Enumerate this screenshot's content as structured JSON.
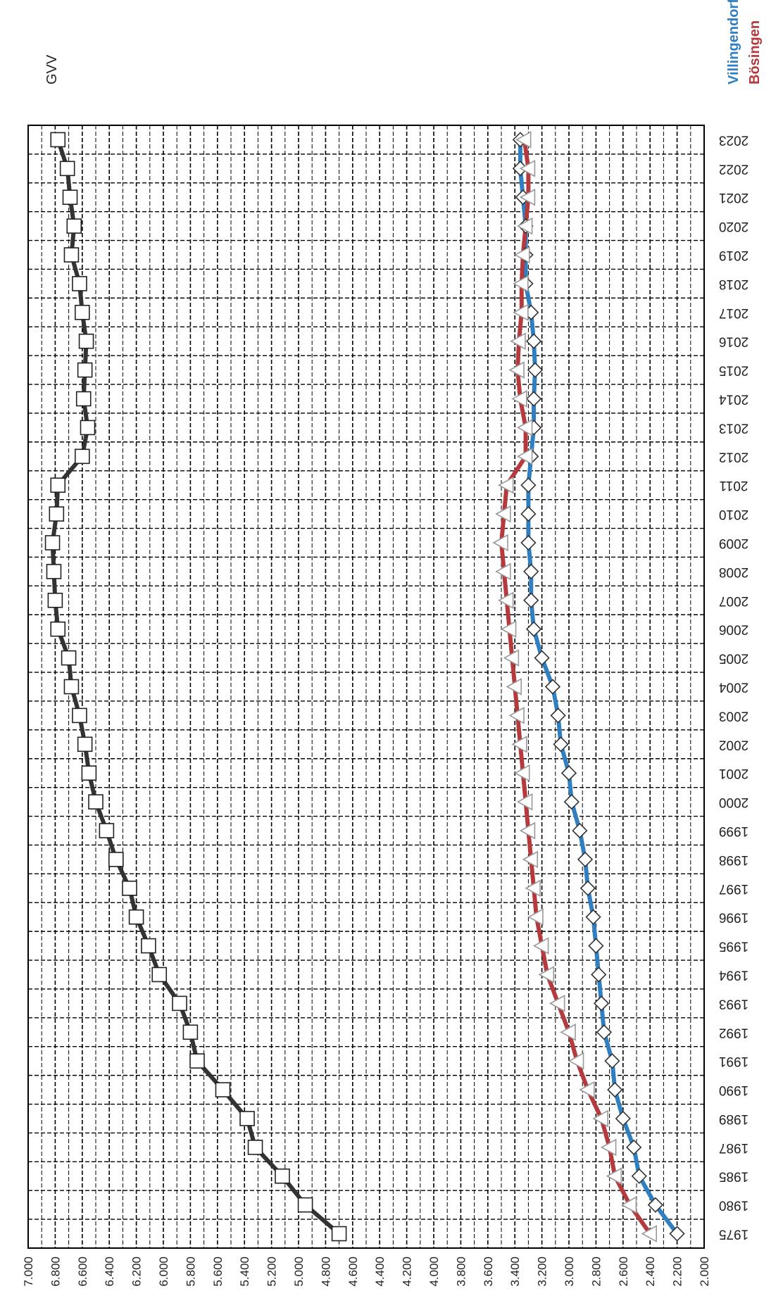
{
  "chart_data": {
    "type": "line",
    "orientation": "rotated-90",
    "title": "",
    "xlabel": "",
    "ylabel": "",
    "ylim": [
      2000,
      7000
    ],
    "y_tick_labels": [
      "2.000",
      "2.200",
      "2.400",
      "2.600",
      "2.800",
      "3.000",
      "3.200",
      "3.400",
      "3.600",
      "3.800",
      "4.000",
      "4.200",
      "4.400",
      "4.600",
      "4.800",
      "5.000",
      "5.200",
      "5.400",
      "5.600",
      "5.800",
      "6.000",
      "6.200",
      "6.400",
      "6.600",
      "6.800",
      "7.000"
    ],
    "categories": [
      "1975",
      "1980",
      "1985",
      "1987",
      "1989",
      "1990",
      "1991",
      "1992",
      "1993",
      "1994",
      "1995",
      "1996",
      "1997",
      "1998",
      "1999",
      "2000",
      "2001",
      "2002",
      "2003",
      "2004",
      "2005",
      "2006",
      "2007",
      "2008",
      "2009",
      "2010",
      "2011",
      "2012",
      "2013",
      "2014",
      "2015",
      "2016",
      "2017",
      "2018",
      "2019",
      "2020",
      "2021",
      "2022",
      "2023"
    ],
    "grid": true,
    "series": [
      {
        "name": "GVV",
        "marker": "square",
        "color": "#333333",
        "values": [
          4700,
          4950,
          5120,
          5320,
          5380,
          5560,
          5750,
          5800,
          5880,
          6030,
          6110,
          6200,
          6250,
          6350,
          6420,
          6500,
          6550,
          6580,
          6620,
          6680,
          6700,
          6780,
          6800,
          6810,
          6820,
          6790,
          6780,
          6600,
          6560,
          6590,
          6580,
          6570,
          6600,
          6620,
          6680,
          6660,
          6690,
          6710,
          6780
        ]
      },
      {
        "name": "Villingendorf",
        "marker": "diamond",
        "color": "#2f7fc1",
        "values": [
          2200,
          2360,
          2480,
          2520,
          2600,
          2660,
          2680,
          2740,
          2760,
          2780,
          2800,
          2820,
          2860,
          2880,
          2920,
          2980,
          3000,
          3060,
          3080,
          3120,
          3200,
          3260,
          3280,
          3280,
          3300,
          3300,
          3300,
          3280,
          3260,
          3260,
          3250,
          3260,
          3280,
          3320,
          3320,
          3320,
          3340,
          3360,
          3360
        ]
      },
      {
        "name": "Bösingen",
        "marker": "triangle",
        "color": "#b53a3d",
        "values": [
          2400,
          2550,
          2660,
          2700,
          2760,
          2860,
          2940,
          3000,
          3080,
          3160,
          3200,
          3240,
          3260,
          3280,
          3300,
          3320,
          3340,
          3360,
          3380,
          3400,
          3420,
          3440,
          3460,
          3480,
          3500,
          3480,
          3460,
          3320,
          3320,
          3360,
          3380,
          3370,
          3350,
          3350,
          3340,
          3320,
          3300,
          3300,
          3330
        ]
      }
    ]
  }
}
